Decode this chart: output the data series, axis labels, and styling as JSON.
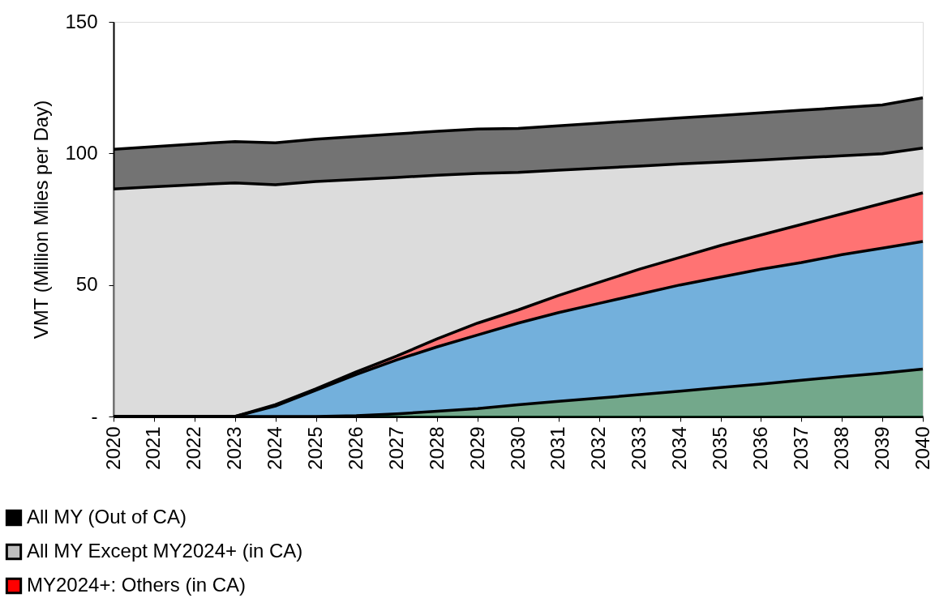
{
  "chart_data": {
    "type": "area",
    "stacked": true,
    "ylabel": "VMT (Million Miles per Day)",
    "categories": [
      "2020",
      "2021",
      "2022",
      "2023",
      "2024",
      "2025",
      "2026",
      "2027",
      "2028",
      "2029",
      "2030",
      "2031",
      "2032",
      "2033",
      "2034",
      "2035",
      "2036",
      "2037",
      "2038",
      "2039",
      "2040"
    ],
    "ylim": [
      0,
      150
    ],
    "yticks": [
      {
        "value": 0,
        "label": "-"
      },
      50,
      100,
      150
    ],
    "grid": false,
    "legend": "bottom left",
    "series": [
      {
        "color": "#00602b",
        "values": [
          0,
          0,
          0,
          0,
          0,
          0,
          0.3,
          1,
          2,
          3,
          4.5,
          5.8,
          7,
          8.3,
          9.6,
          11,
          12.3,
          13.8,
          15.2,
          16.5,
          18
        ]
      },
      {
        "color": "#0070c0",
        "values": [
          0,
          0,
          0,
          0,
          4,
          10,
          15.7,
          20.5,
          24.5,
          28,
          31,
          33.7,
          36,
          38.2,
          40.4,
          42,
          43.7,
          44.7,
          46.3,
          47.5,
          48.5
        ]
      },
      {
        "name": "MY2024+: Others (in CA)",
        "color": "#ff0000",
        "values": [
          0,
          0,
          0,
          0,
          0.5,
          0.5,
          1,
          1.5,
          3,
          4.5,
          5,
          6.5,
          8,
          9.5,
          10.5,
          12,
          13,
          14.5,
          15.5,
          17,
          18.5
        ]
      },
      {
        "name": "All MY Except MY2024+ (in CA)",
        "color": "#bfbfbf",
        "values": [
          86.5,
          87.3,
          88.1,
          88.8,
          83.6,
          78.8,
          73.1,
          67.9,
          62.2,
          56.9,
          52.3,
          47.6,
          43.4,
          39.2,
          35.5,
          31.7,
          28.5,
          25.3,
          22.1,
          18.9,
          17
        ]
      },
      {
        "name": "All MY (Out of CA)",
        "color": "#000000",
        "values": [
          15.1,
          15.3,
          15.5,
          15.7,
          15.9,
          16.1,
          16.3,
          16.5,
          16.7,
          16.9,
          16.7,
          16.9,
          17.1,
          17.3,
          17.5,
          17.7,
          17.9,
          18.1,
          18.3,
          18.5,
          19.1
        ]
      }
    ]
  }
}
